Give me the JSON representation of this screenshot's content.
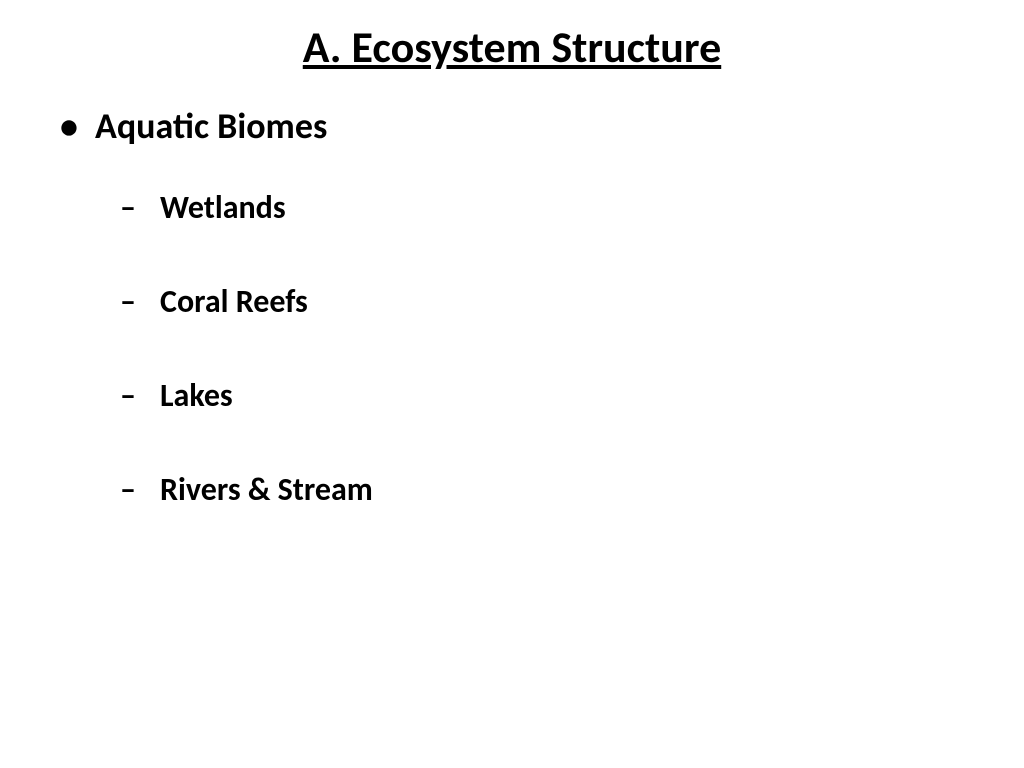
{
  "title": "A. Ecosystem Structure",
  "content": {
    "level1_text": "Aquatic Biomes",
    "sub_items": [
      "Wetlands",
      "Coral Reefs",
      "Lakes",
      "Rivers & Stream"
    ]
  },
  "styling": {
    "background_color": "#ffffff",
    "text_color": "#000000",
    "title_fontsize": 44,
    "level1_fontsize": 36,
    "level2_fontsize": 32,
    "font_family": "Calibri, Arial, sans-serif",
    "font_weight": "bold",
    "title_underline": true,
    "level1_bullet": "•",
    "level2_bullet": "–"
  }
}
